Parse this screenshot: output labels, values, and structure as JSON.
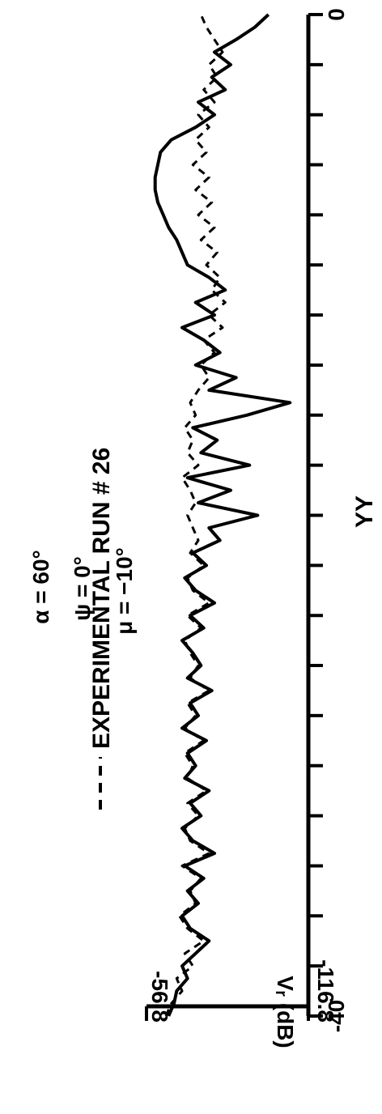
{
  "chart_data": {
    "type": "line",
    "title": "",
    "xlabel": "YY",
    "ylabel": "Vᵣ (dB)",
    "xlim": [
      -40,
      0
    ],
    "ylim": [
      -116.8,
      -56.8
    ],
    "x_tick_labels": [
      "-40",
      "0"
    ],
    "y_tick_labels": [
      "-56.8",
      "-116.8"
    ],
    "annotations": [
      "α = 60°",
      "ψ = 0°",
      "μ = −10°"
    ],
    "legend": {
      "text": "EXPERIMENTAL  RUN  # 26",
      "placement": "top"
    },
    "series": [
      {
        "name": "",
        "style": "solid",
        "x": [
          -40,
          -39.5,
          -39,
          -38.5,
          -38,
          -37.5,
          -37,
          -36.5,
          -36,
          -35.5,
          -35,
          -34.5,
          -34,
          -33.5,
          -33,
          -32.5,
          -32,
          -31.5,
          -31,
          -30.5,
          -30,
          -29.5,
          -29,
          -28.5,
          -28,
          -27.5,
          -27,
          -26.5,
          -26,
          -25.5,
          -25,
          -24.5,
          -24,
          -23.5,
          -23,
          -22.5,
          -22,
          -21.5,
          -21,
          -20.5,
          -20,
          -19.5,
          -19,
          -18.5,
          -18,
          -17.5,
          -17,
          -16.5,
          -16,
          -15.5,
          -15,
          -14.5,
          -14,
          -13.5,
          -13,
          -12.5,
          -12,
          -11.5,
          -11,
          -10.5,
          -10,
          -9.5,
          -9,
          -8.5,
          -8,
          -7.5,
          -7,
          -6.5,
          -6,
          -5.5,
          -5,
          -4.5,
          -4,
          -3.5,
          -3,
          -2.5,
          -2,
          -1.5,
          -1,
          -0.5,
          0
        ],
        "y": [
          -65,
          -67,
          -68,
          -72,
          -70,
          -75,
          -80,
          -73,
          -70,
          -76,
          -72,
          -78,
          -71,
          -82,
          -74,
          -70,
          -77,
          -73,
          -80,
          -71,
          -75,
          -72,
          -79,
          -70,
          -76,
          -73,
          -81,
          -72,
          -77,
          -74,
          -70,
          -78,
          -73,
          -82,
          -75,
          -71,
          -79,
          -74,
          -84,
          -80,
          -98,
          -76,
          -88,
          -72,
          -95,
          -77,
          -83,
          -74,
          -94,
          -110,
          -80,
          -90,
          -75,
          -84,
          -78,
          -70,
          -82,
          -75,
          -86,
          -80,
          -72,
          -70,
          -68,
          -65,
          -63,
          -61,
          -60,
          -60,
          -61,
          -62,
          -66,
          -75,
          -82,
          -76,
          -86,
          -81,
          -88,
          -82,
          -90,
          -97,
          -102
        ]
      },
      {
        "name": "EXPERIMENTAL  RUN  # 26",
        "style": "dashed",
        "x": [
          -40,
          -39.5,
          -39,
          -38.5,
          -38,
          -37.5,
          -37,
          -36.5,
          -36,
          -35.5,
          -35,
          -34.5,
          -34,
          -33.5,
          -33,
          -32.5,
          -32,
          -31.5,
          -31,
          -30.5,
          -30,
          -29.5,
          -29,
          -28.5,
          -28,
          -27.5,
          -27,
          -26.5,
          -26,
          -25.5,
          -25,
          -24.5,
          -24,
          -23.5,
          -23,
          -22.5,
          -22,
          -21.5,
          -21,
          -20.5,
          -20,
          -19.5,
          -19,
          -18.5,
          -18,
          -17.5,
          -17,
          -16.5,
          -16,
          -15.5,
          -15,
          -14.5,
          -14,
          -13.5,
          -13,
          -12.5,
          -12,
          -11.5,
          -11,
          -10.5,
          -10,
          -9.5,
          -9,
          -8.5,
          -8,
          -7.5,
          -7,
          -6.5,
          -6,
          -5.5,
          -5,
          -4.5,
          -4,
          -3.5,
          -3,
          -2.5,
          -2,
          -1.5,
          -1,
          -0.5,
          0
        ],
        "y": [
          -64,
          -66,
          -70,
          -68,
          -74,
          -71,
          -78,
          -72,
          -69,
          -75,
          -73,
          -77,
          -70,
          -80,
          -73,
          -71,
          -76,
          -72,
          -79,
          -72,
          -74,
          -71,
          -78,
          -71,
          -75,
          -72,
          -80,
          -73,
          -76,
          -73,
          -71,
          -77,
          -72,
          -80,
          -74,
          -72,
          -78,
          -73,
          -76,
          -74,
          -72,
          -75,
          -73,
          -70,
          -76,
          -72,
          -74,
          -71,
          -75,
          -73,
          -76,
          -80,
          -77,
          -82,
          -78,
          -85,
          -80,
          -86,
          -81,
          -84,
          -79,
          -83,
          -77,
          -82,
          -76,
          -81,
          -75,
          -80,
          -74,
          -79,
          -75,
          -80,
          -76,
          -82,
          -78,
          -83,
          -80,
          -85,
          -82,
          -79,
          -77
        ]
      }
    ]
  }
}
